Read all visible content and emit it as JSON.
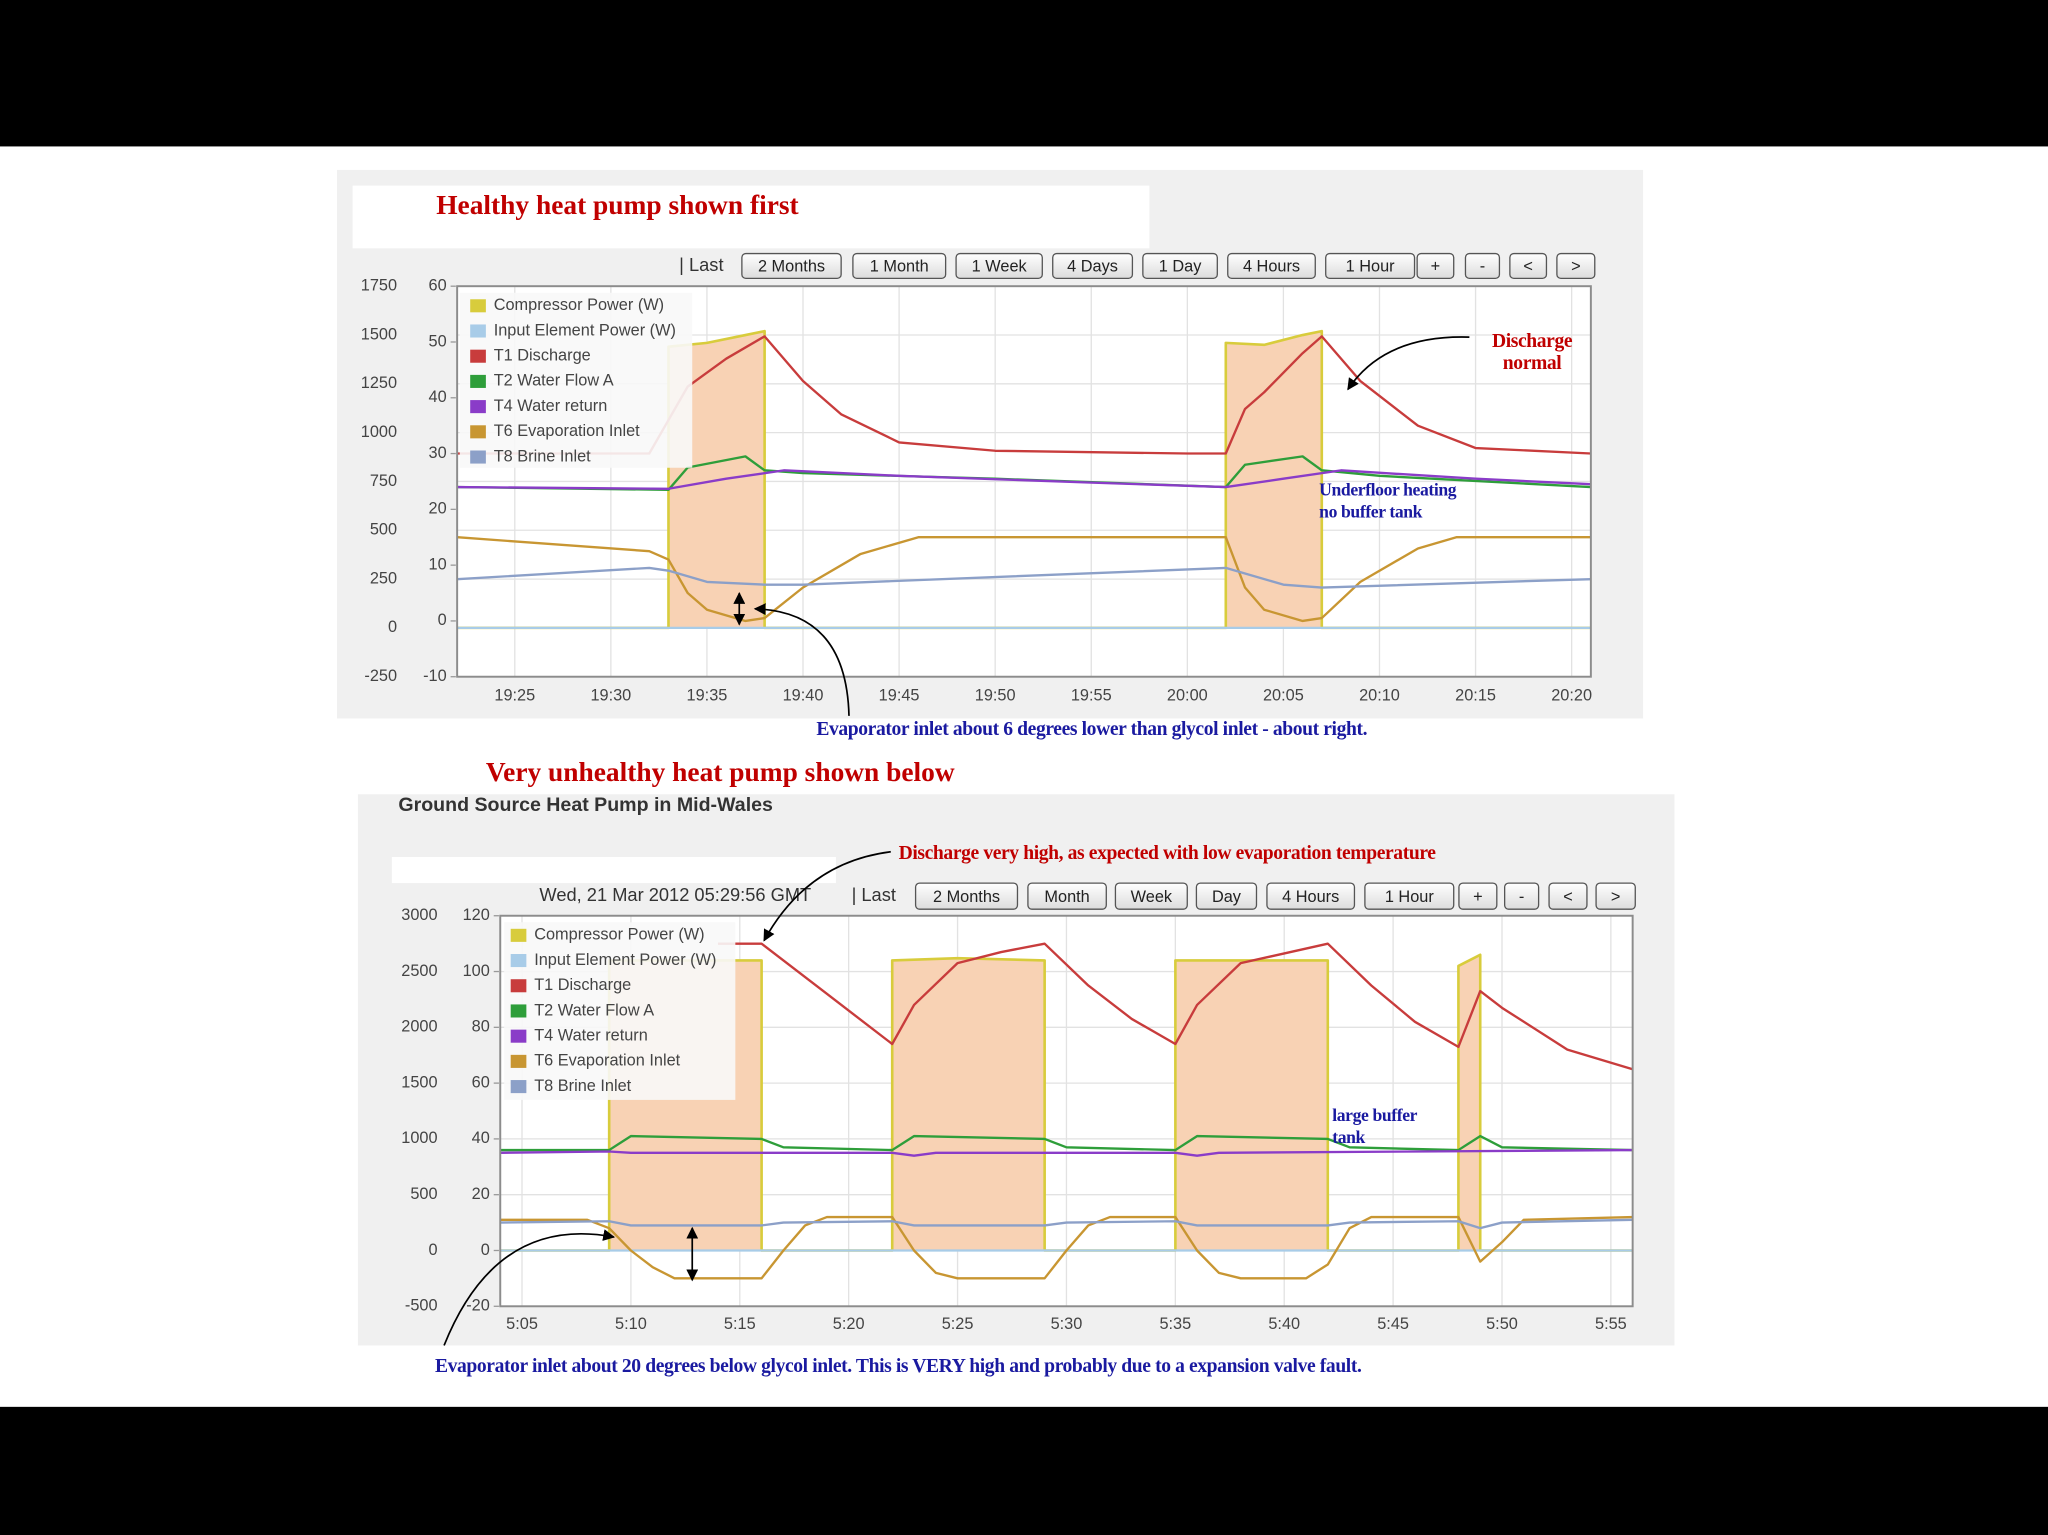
{
  "chart_data": [
    {
      "type": "line",
      "title": "Healthy heat pump shown first",
      "toolbar": {
        "last": "| Last",
        "buttons": [
          "2 Months",
          "1 Month",
          "1 Week",
          "4 Days",
          "1 Day",
          "4 Hours",
          "1 Hour",
          "+",
          "-",
          "<",
          ">"
        ]
      },
      "xlim": [
        "19:22",
        "20:21"
      ],
      "xticks": [
        "19:25",
        "19:30",
        "19:35",
        "19:40",
        "19:45",
        "19:50",
        "19:55",
        "20:00",
        "20:05",
        "20:10",
        "20:15",
        "20:20"
      ],
      "ylim": [
        -250,
        1750
      ],
      "yticks": [
        -250,
        0,
        250,
        500,
        750,
        1000,
        1250,
        1500,
        1750
      ],
      "y2lim": [
        -10,
        60
      ],
      "y2ticks": [
        -10,
        0,
        10,
        20,
        30,
        40,
        50,
        60
      ],
      "grid": true,
      "series": [
        {
          "name": "Compressor Power (W)",
          "color": "#d8cc3c",
          "fill": "#f8d2b4",
          "x": [
            "19:22",
            "19:33",
            "19:33",
            "19:35",
            "19:37",
            "19:38",
            "19:38",
            "20:02",
            "20:02",
            "20:04",
            "20:06",
            "20:07",
            "20:07",
            "20:21"
          ],
          "values": [
            0,
            0,
            1440,
            1460,
            1500,
            1520,
            0,
            0,
            1460,
            1450,
            1500,
            1520,
            0,
            0
          ]
        },
        {
          "name": "Input Element Power (W)",
          "color": "#a8cce8",
          "x": [
            "19:22",
            "20:21"
          ],
          "values": [
            0,
            0
          ]
        },
        {
          "name": "T1 Discharge",
          "color": "#c83c3c",
          "axis": "y2",
          "x": [
            "19:22",
            "19:32",
            "19:33",
            "19:34",
            "19:36",
            "19:38",
            "19:40",
            "19:42",
            "19:45",
            "19:50",
            "20:00",
            "20:02",
            "20:03",
            "20:04",
            "20:06",
            "20:07",
            "20:09",
            "20:12",
            "20:15",
            "20:21"
          ],
          "values": [
            30,
            30,
            36,
            42,
            47,
            51,
            43,
            37,
            32,
            30.5,
            30,
            30,
            38,
            41,
            48,
            51,
            43,
            35,
            31,
            30
          ]
        },
        {
          "name": "T2 Water Flow A",
          "color": "#2e9e3a",
          "axis": "y2",
          "x": [
            "19:22",
            "19:33",
            "19:34",
            "19:37",
            "19:38",
            "19:40",
            "19:50",
            "20:02",
            "20:03",
            "20:06",
            "20:07",
            "20:10",
            "20:21"
          ],
          "values": [
            24,
            23.5,
            27.5,
            29.5,
            27,
            26.5,
            25.5,
            24,
            28,
            29.5,
            27,
            26,
            24
          ]
        },
        {
          "name": "T4 Water return",
          "color": "#8a3cc8",
          "axis": "y2",
          "x": [
            "19:22",
            "19:33",
            "19:36",
            "19:39",
            "19:45",
            "19:55",
            "20:02",
            "20:05",
            "20:08",
            "20:15",
            "20:21"
          ],
          "values": [
            24,
            23.7,
            25.5,
            27,
            26,
            24.8,
            24,
            25.5,
            27,
            25.5,
            24.5
          ]
        },
        {
          "name": "T6 Evaporation Inlet",
          "color": "#c89632",
          "axis": "y2",
          "x": [
            "19:22",
            "19:32",
            "19:33",
            "19:34",
            "19:35",
            "19:37",
            "19:38",
            "19:40",
            "19:43",
            "19:46",
            "20:02",
            "20:03",
            "20:04",
            "20:06",
            "20:07",
            "20:09",
            "20:12",
            "20:14",
            "20:21"
          ],
          "values": [
            15,
            12.5,
            11,
            5,
            2,
            0,
            0.5,
            6,
            12,
            15,
            15,
            6,
            2,
            0,
            0.5,
            7,
            13,
            15,
            15
          ]
        },
        {
          "name": "T8 Brine Inlet",
          "color": "#8ca0c8",
          "axis": "y2",
          "x": [
            "19:22",
            "19:32",
            "19:33",
            "19:35",
            "19:38",
            "19:40",
            "20:02",
            "20:03",
            "20:05",
            "20:07",
            "20:21"
          ],
          "values": [
            7.5,
            9.5,
            9,
            7,
            6.5,
            6.5,
            9.5,
            8.5,
            6.5,
            6,
            7.5
          ]
        }
      ],
      "annotations": [
        {
          "lines": [
            "Discharge",
            "normal"
          ],
          "color": "#c00000"
        },
        {
          "lines": [
            "Underfloor heating",
            "no buffer tank"
          ],
          "color": "#1a1aa0"
        },
        {
          "lines": [
            "Evaporator inlet about 6 degrees lower than glycol inlet - about right."
          ],
          "color": "#1a1aa0"
        }
      ]
    },
    {
      "type": "line",
      "title": "Very unhealthy heat pump shown below",
      "subtitle": "Ground Source Heat Pump in Mid-Wales",
      "timestamp": "Wed, 21 Mar 2012 05:29:56 GMT",
      "toolbar": {
        "last": "| Last",
        "buttons": [
          "2 Months",
          "Month",
          "Week",
          "Day",
          "4 Hours",
          "1 Hour",
          "+",
          "-",
          "<",
          ">"
        ]
      },
      "xlim": [
        "5:04",
        "5:56"
      ],
      "xticks": [
        "5:05",
        "5:10",
        "5:15",
        "5:20",
        "5:25",
        "5:30",
        "5:35",
        "5:40",
        "5:45",
        "5:50",
        "5:55"
      ],
      "ylim": [
        -500,
        3000
      ],
      "yticks": [
        -500,
        0,
        500,
        1000,
        1500,
        2000,
        2500,
        3000
      ],
      "y2lim": [
        -20,
        120
      ],
      "y2ticks": [
        -20,
        0,
        20,
        40,
        60,
        80,
        100,
        120
      ],
      "grid": true,
      "series": [
        {
          "name": "Compressor Power (W)",
          "color": "#d8cc3c",
          "fill": "#f8d2b4",
          "x": [
            "5:04",
            "5:09",
            "5:09",
            "5:16",
            "5:16",
            "5:22",
            "5:22",
            "5:25",
            "5:29",
            "5:29",
            "5:35",
            "5:35",
            "5:42",
            "5:42",
            "5:48",
            "5:48",
            "5:49",
            "5:49",
            "5:56"
          ],
          "values": [
            0,
            0,
            2600,
            2600,
            0,
            0,
            2600,
            2620,
            2600,
            0,
            0,
            2600,
            2600,
            0,
            0,
            2550,
            2650,
            0,
            0
          ]
        },
        {
          "name": "Input Element Power (W)",
          "color": "#a8cce8",
          "x": [
            "5:04",
            "5:56"
          ],
          "values": [
            0,
            0
          ]
        },
        {
          "name": "T1 Discharge",
          "color": "#c83c3c",
          "axis": "y2",
          "x": [
            "5:14",
            "5:16",
            "5:19",
            "5:22",
            "5:23",
            "5:25",
            "5:27",
            "5:29",
            "5:31",
            "5:33",
            "5:35",
            "5:36",
            "5:38",
            "5:42",
            "5:44",
            "5:46",
            "5:48",
            "5:49",
            "5:50",
            "5:53",
            "5:56"
          ],
          "values": [
            110,
            110,
            92,
            74,
            88,
            103,
            107,
            110,
            95,
            83,
            74,
            88,
            103,
            110,
            95,
            82,
            73,
            93,
            87,
            72,
            65
          ]
        },
        {
          "name": "T2 Water Flow A",
          "color": "#2e9e3a",
          "axis": "y2",
          "x": [
            "5:04",
            "5:09",
            "5:10",
            "5:16",
            "5:17",
            "5:22",
            "5:23",
            "5:29",
            "5:30",
            "5:35",
            "5:36",
            "5:42",
            "5:43",
            "5:48",
            "5:49",
            "5:50",
            "5:56"
          ],
          "values": [
            36,
            36,
            41,
            40,
            37,
            36,
            41,
            40,
            37,
            36,
            41,
            40,
            37,
            36,
            41,
            37,
            36
          ]
        },
        {
          "name": "T4 Water return",
          "color": "#8a3cc8",
          "axis": "y2",
          "x": [
            "5:04",
            "5:09",
            "5:10",
            "5:22",
            "5:23",
            "5:24",
            "5:35",
            "5:36",
            "5:37",
            "5:56"
          ],
          "values": [
            35,
            35.5,
            35,
            35,
            34,
            35,
            35,
            34,
            35,
            36
          ]
        },
        {
          "name": "T6 Evaporation Inlet",
          "color": "#c89632",
          "axis": "y2",
          "x": [
            "5:04",
            "5:08",
            "5:09",
            "5:10",
            "5:11",
            "5:12",
            "5:16",
            "5:17",
            "5:18",
            "5:19",
            "5:22",
            "5:23",
            "5:24",
            "5:25",
            "5:29",
            "5:30",
            "5:31",
            "5:32",
            "5:35",
            "5:36",
            "5:37",
            "5:38",
            "5:41",
            "5:42",
            "5:43",
            "5:44",
            "5:48",
            "5:49",
            "5:50",
            "5:51",
            "5:56"
          ],
          "values": [
            11,
            11,
            8,
            0,
            -6,
            -10,
            -10,
            0,
            9,
            12,
            12,
            0,
            -8,
            -10,
            -10,
            0,
            9,
            12,
            12,
            0,
            -8,
            -10,
            -10,
            -5,
            8,
            12,
            12,
            -4,
            3,
            11,
            12
          ]
        },
        {
          "name": "T8 Brine Inlet",
          "color": "#8ca0c8",
          "axis": "y2",
          "x": [
            "5:04",
            "5:09",
            "5:10",
            "5:16",
            "5:17",
            "5:22",
            "5:23",
            "5:29",
            "5:30",
            "5:35",
            "5:36",
            "5:42",
            "5:43",
            "5:48",
            "5:49",
            "5:50",
            "5:56"
          ],
          "values": [
            10,
            10.5,
            9,
            9,
            10,
            10.5,
            9,
            9,
            10,
            10.5,
            9,
            9,
            10,
            10.5,
            8,
            10,
            11
          ]
        }
      ],
      "annotations": [
        {
          "lines": [
            "Discharge very high, as expected with low evaporation temperature"
          ],
          "color": "#c00000"
        },
        {
          "lines": [
            "large buffer",
            "tank"
          ],
          "color": "#1a1aa0"
        },
        {
          "lines": [
            "Evaporator inlet about 20 degrees below glycol inlet. This is VERY high and probably due to a expansion valve fault."
          ],
          "color": "#1a1aa0"
        }
      ]
    }
  ]
}
